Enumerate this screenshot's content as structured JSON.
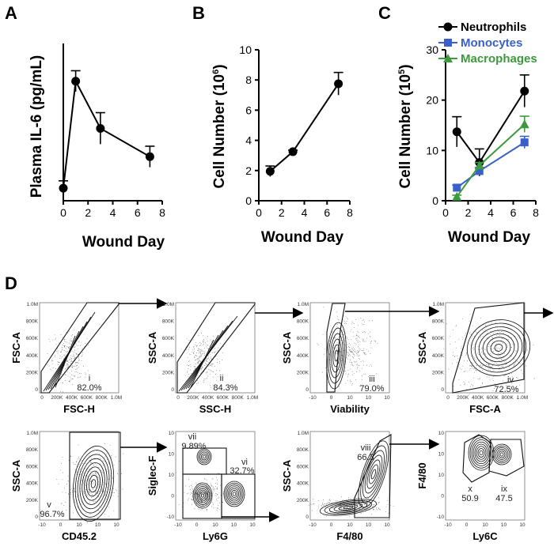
{
  "panel_labels": [
    "A",
    "B",
    "C",
    "D"
  ],
  "chart_data": [
    {
      "panel": "A",
      "type": "line",
      "xlabel": "Wound Day",
      "ylabel": "Plasma IL-6 (pg/mL)",
      "xlim": [
        0,
        8
      ],
      "ylim": [
        0,
        15
      ],
      "xticks": [
        0,
        2,
        4,
        6,
        8
      ],
      "yticks": [],
      "series": [
        {
          "x": [
            0,
            1,
            3,
            7
          ],
          "values": [
            1.2,
            11.4,
            6.9,
            4.2
          ],
          "err": [
            0.7,
            1.0,
            1.5,
            1.0
          ],
          "color": "#000000",
          "marker": "circle"
        }
      ]
    },
    {
      "panel": "B",
      "type": "line",
      "xlabel": "Wound Day",
      "ylabel": "Cell Number (10",
      "ylabel_sup": "6",
      "ylabel_end": ")",
      "xlim": [
        0,
        8
      ],
      "ylim": [
        0,
        10
      ],
      "xticks": [
        0,
        2,
        4,
        6,
        8
      ],
      "yticks": [
        0,
        2,
        4,
        6,
        8,
        10
      ],
      "series": [
        {
          "x": [
            1,
            3,
            7
          ],
          "values": [
            1.95,
            3.25,
            7.75
          ],
          "err": [
            0.35,
            0.1,
            0.75
          ],
          "color": "#000000",
          "marker": "circle"
        }
      ]
    },
    {
      "panel": "C",
      "type": "line",
      "xlabel": "Wound Day",
      "ylabel": "Cell Number (10",
      "ylabel_sup": "5",
      "ylabel_end": ")",
      "xlim": [
        0,
        8
      ],
      "ylim": [
        0,
        30
      ],
      "xticks": [
        0,
        2,
        4,
        6,
        8
      ],
      "yticks": [
        0,
        10,
        20,
        30
      ],
      "legend_position": "top-right",
      "series": [
        {
          "name": "Neutrophils",
          "x": [
            1,
            3,
            7
          ],
          "values": [
            13.7,
            7.6,
            21.8
          ],
          "err": [
            3.0,
            2.7,
            3.2
          ],
          "color": "#000000",
          "marker": "circle"
        },
        {
          "name": "Monocytes",
          "x": [
            1,
            3,
            7
          ],
          "values": [
            2.6,
            5.9,
            11.6
          ],
          "err": [
            0.5,
            0.7,
            1.2
          ],
          "color": "#3a5fc8",
          "marker": "square"
        },
        {
          "name": "Macrophages",
          "x": [
            1,
            3,
            7
          ],
          "values": [
            0.8,
            7.0,
            15.2
          ],
          "err": [
            0.3,
            0.6,
            1.6
          ],
          "color": "#3c9a3c",
          "marker": "triangle"
        }
      ]
    }
  ],
  "flow": {
    "row1_ticks": [
      "1.0M",
      "800K",
      "600K",
      "400K",
      "200K",
      "0"
    ],
    "row1_xticks": [
      "0",
      "200K",
      "400K",
      "600K",
      "800K",
      "1.0M"
    ],
    "viability_xticks": [
      "-10",
      "0",
      "10",
      "10",
      "10"
    ],
    "cd45_ticks": [
      "-10",
      "0",
      "10",
      "10",
      "10"
    ],
    "biex_yticks": [
      "10",
      "10",
      "10",
      "0",
      "-10"
    ],
    "plots": [
      {
        "ylabel": "FSC-A",
        "xlabel": "FSC-H",
        "gates": [
          {
            "id": "i",
            "pct": "82.0%"
          }
        ]
      },
      {
        "ylabel": "SSC-A",
        "xlabel": "SSC-H",
        "gates": [
          {
            "id": "ii",
            "pct": "84.3%"
          }
        ]
      },
      {
        "ylabel": "SSC-A",
        "xlabel": "Viability",
        "gates": [
          {
            "id": "iii",
            "pct": "79.0%"
          }
        ]
      },
      {
        "ylabel": "SSC-A",
        "xlabel": "FSC-A",
        "gates": [
          {
            "id": "iv",
            "pct": "72.5%"
          }
        ]
      },
      {
        "ylabel": "SSC-A",
        "xlabel": "CD45.2",
        "gates": [
          {
            "id": "v",
            "pct": "96.7%"
          }
        ]
      },
      {
        "ylabel": "Siglec-F",
        "xlabel": "Ly6G",
        "gates": [
          {
            "id": "vii",
            "pct": "9.89%"
          },
          {
            "id": "vi",
            "pct": "32.7%"
          }
        ]
      },
      {
        "ylabel": "SSC-A",
        "xlabel": "F4/80",
        "gates": [
          {
            "id": "viii",
            "pct": "66.3"
          }
        ]
      },
      {
        "ylabel": "F4/80",
        "xlabel": "Ly6C",
        "gates": [
          {
            "id": "x",
            "pct": "50.9"
          },
          {
            "id": "ix",
            "pct": "47.5"
          }
        ]
      }
    ]
  }
}
